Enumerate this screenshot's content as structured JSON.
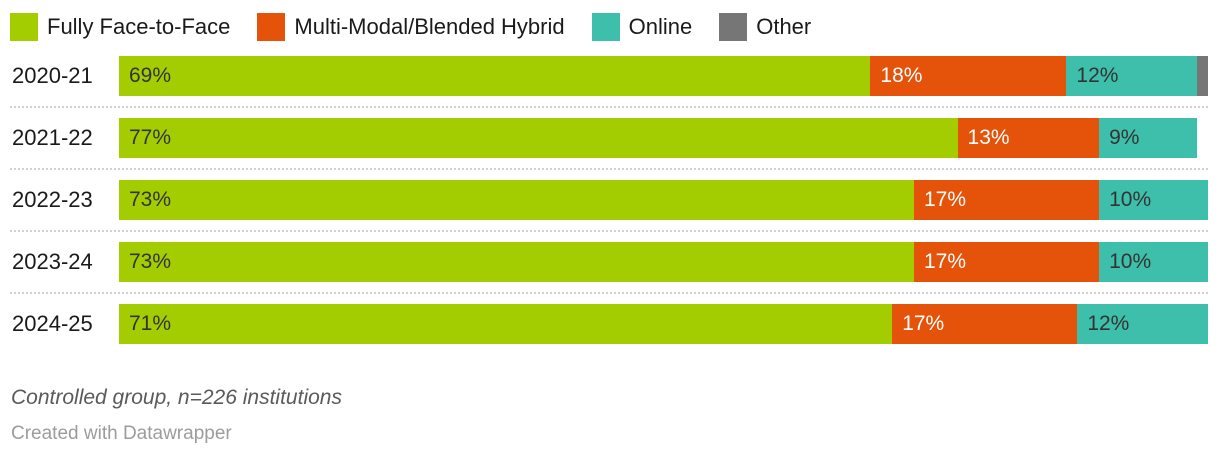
{
  "legend": {
    "items": [
      {
        "label": "Fully Face-to-Face",
        "color": "#a4cd01",
        "icon": "swatch-green"
      },
      {
        "label": "Multi-Modal/Blended Hybrid",
        "color": "#e5530a",
        "icon": "swatch-orange"
      },
      {
        "label": "Online",
        "color": "#3ebfab",
        "icon": "swatch-teal"
      },
      {
        "label": "Other",
        "color": "#767676",
        "icon": "swatch-gray"
      }
    ]
  },
  "chart_data": {
    "type": "bar",
    "orientation": "horizontal",
    "stacked": true,
    "grid": "dotted-row-separators",
    "legend_position": "top",
    "value_suffix": "%",
    "label_min_value_to_show": 5,
    "xlim": [
      0,
      100
    ],
    "categories": [
      "2020-21",
      "2021-22",
      "2022-23",
      "2023-24",
      "2024-25"
    ],
    "series": [
      {
        "name": "Fully Face-to-Face",
        "color": "#a4cd01",
        "label_color": "#333333",
        "values": [
          69,
          77,
          73,
          73,
          71
        ]
      },
      {
        "name": "Multi-Modal/Blended Hybrid",
        "color": "#e5530a",
        "label_color": "#ffffff",
        "values": [
          18,
          13,
          17,
          17,
          17
        ]
      },
      {
        "name": "Online",
        "color": "#3ebfab",
        "label_color": "#333333",
        "values": [
          12,
          9,
          10,
          10,
          12
        ]
      },
      {
        "name": "Other",
        "color": "#767676",
        "label_color": "#ffffff",
        "values": [
          1,
          0,
          0,
          0,
          0
        ]
      }
    ]
  },
  "footer": {
    "note": "Controlled group, n=226 institutions",
    "credit": "Created with Datawrapper"
  }
}
